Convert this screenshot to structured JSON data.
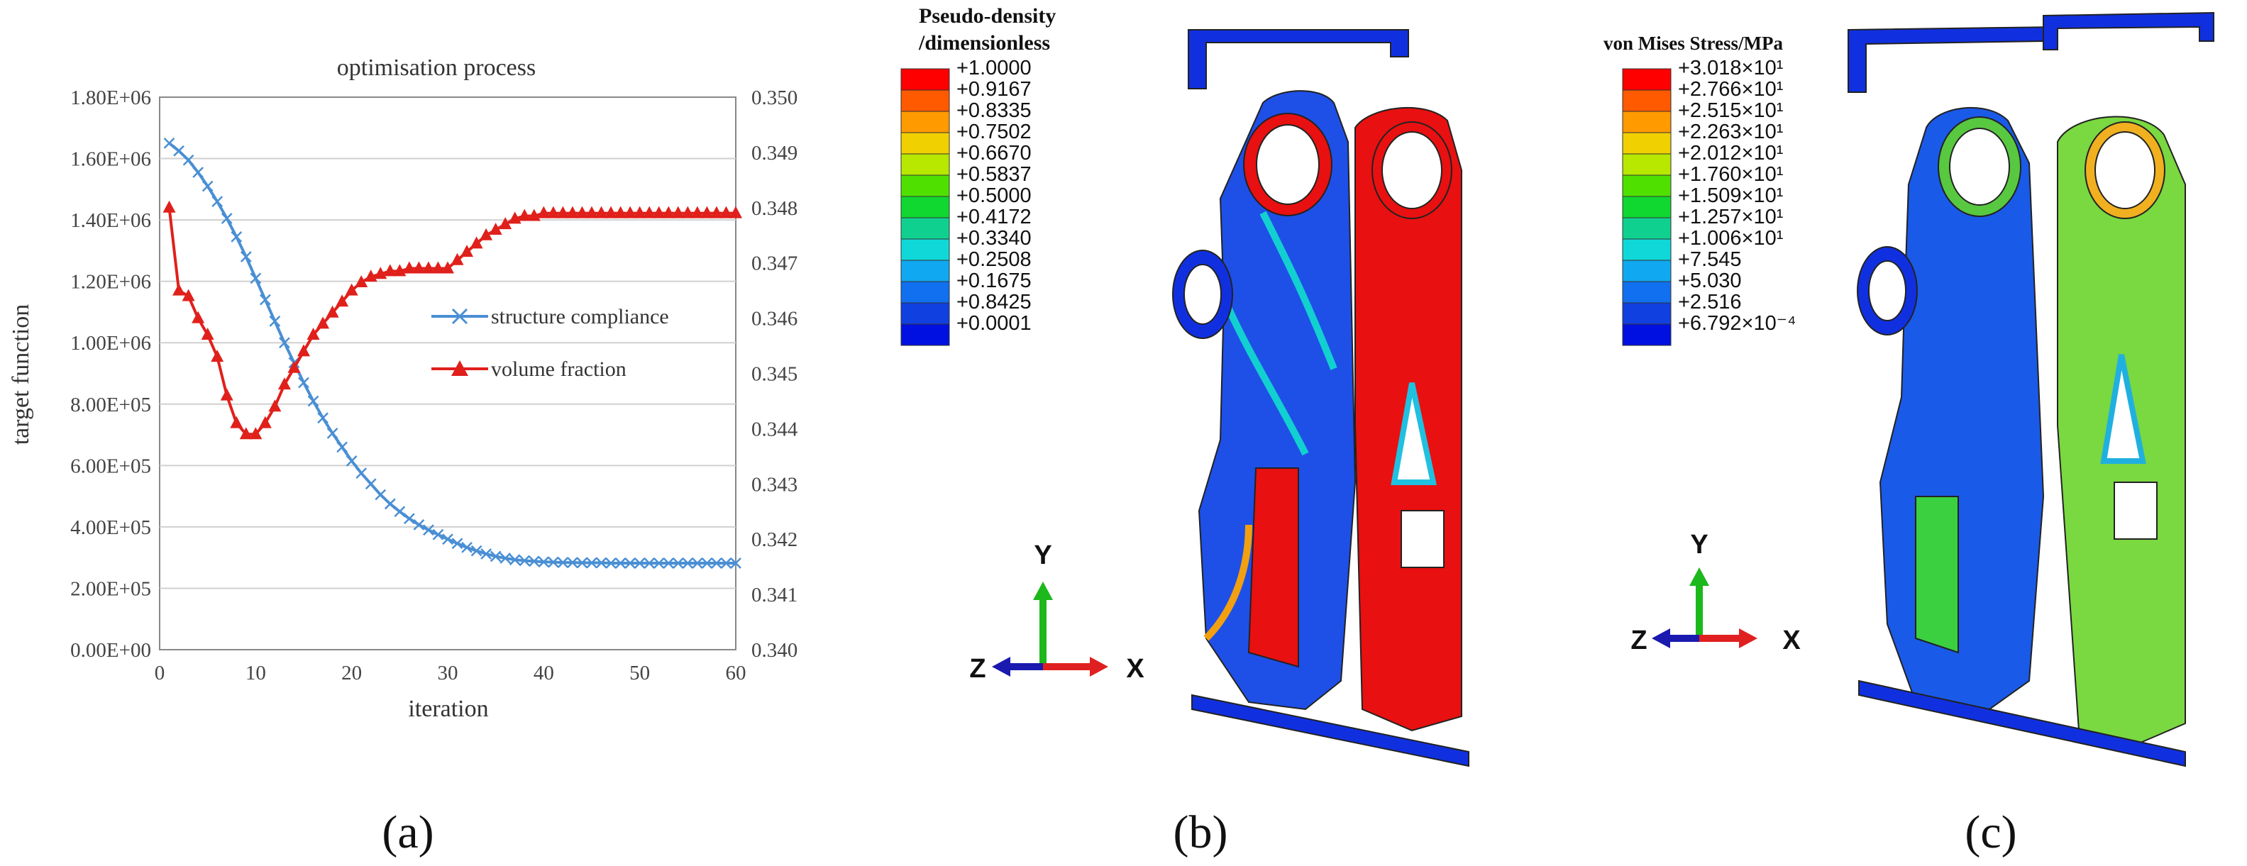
{
  "chart_data": {
    "type": "line",
    "title": "optimisation process",
    "xlabel": "iteration",
    "ylabel": "target function",
    "xlim": [
      0,
      60
    ],
    "ylim": [
      0,
      1800000
    ],
    "y2lim": [
      0.34,
      0.35
    ],
    "x_ticks": [
      "0",
      "10",
      "20",
      "30",
      "40",
      "50",
      "60"
    ],
    "y_ticks": [
      "0.00E+00",
      "2.00E+05",
      "4.00E+05",
      "6.00E+05",
      "8.00E+05",
      "1.00E+06",
      "1.20E+06",
      "1.40E+06",
      "1.60E+06",
      "1.80E+06"
    ],
    "y2_ticks": [
      "0.340",
      "0.341",
      "0.342",
      "0.343",
      "0.344",
      "0.345",
      "0.346",
      "0.347",
      "0.348",
      "0.349",
      "0.350"
    ],
    "grid": "horizontal",
    "legend_position": "right",
    "series": [
      {
        "name": "structure compliance",
        "axis": "left",
        "color": "#4a8fd4",
        "marker": "x",
        "x": [
          1,
          2,
          3,
          4,
          5,
          6,
          7,
          8,
          9,
          10,
          11,
          12,
          13,
          14,
          15,
          16,
          17,
          18,
          19,
          20,
          21,
          22,
          23,
          24,
          25,
          26,
          27,
          28,
          29,
          30,
          31,
          32,
          33,
          34,
          35,
          36,
          37,
          38,
          39,
          40,
          41,
          42,
          43,
          44,
          45,
          46,
          47,
          48,
          49,
          50,
          51,
          52,
          53,
          54,
          55,
          56,
          57,
          58,
          59,
          60
        ],
        "values": [
          1650000,
          1625000,
          1595000,
          1555000,
          1510000,
          1460000,
          1405000,
          1345000,
          1280000,
          1210000,
          1140000,
          1070000,
          1000000,
          935000,
          870000,
          810000,
          755000,
          705000,
          660000,
          615000,
          575000,
          540000,
          505000,
          475000,
          450000,
          427000,
          407000,
          390000,
          375000,
          360000,
          346000,
          333000,
          322000,
          312000,
          304000,
          298000,
          293000,
          290000,
          288000,
          286000,
          285000,
          284000,
          284000,
          283000,
          283000,
          283000,
          282000,
          282000,
          282000,
          282000,
          282000,
          282000,
          282000,
          282000,
          282000,
          282000,
          282000,
          282000,
          282000,
          282000
        ]
      },
      {
        "name": "volume fraction",
        "axis": "right",
        "color": "#e0201b",
        "marker": "triangle",
        "x": [
          1,
          2,
          3,
          4,
          5,
          6,
          7,
          8,
          9,
          10,
          11,
          12,
          13,
          14,
          15,
          16,
          17,
          18,
          19,
          20,
          21,
          22,
          23,
          24,
          25,
          26,
          27,
          28,
          29,
          30,
          31,
          32,
          33,
          34,
          35,
          36,
          37,
          38,
          39,
          40,
          41,
          42,
          43,
          44,
          45,
          46,
          47,
          48,
          49,
          50,
          51,
          52,
          53,
          54,
          55,
          56,
          57,
          58,
          59,
          60
        ],
        "values": [
          0.348,
          0.3465,
          0.3464,
          0.346,
          0.3457,
          0.3453,
          0.3446,
          0.3441,
          0.3439,
          0.3439,
          0.3441,
          0.3444,
          0.3448,
          0.3451,
          0.3454,
          0.3457,
          0.3459,
          0.3461,
          0.3463,
          0.3465,
          0.34665,
          0.34675,
          0.3468,
          0.34685,
          0.34685,
          0.3469,
          0.3469,
          0.3469,
          0.3469,
          0.3469,
          0.34705,
          0.3472,
          0.34735,
          0.3475,
          0.3476,
          0.3477,
          0.3478,
          0.34785,
          0.34785,
          0.3479,
          0.3479,
          0.3479,
          0.3479,
          0.3479,
          0.3479,
          0.3479,
          0.3479,
          0.3479,
          0.3479,
          0.3479,
          0.3479,
          0.3479,
          0.3479,
          0.3479,
          0.3479,
          0.3479,
          0.3479,
          0.3479,
          0.3479,
          0.3479
        ]
      }
    ]
  },
  "panels": {
    "a": "(a)",
    "b": "(b)",
    "c": "(c)"
  },
  "colorbar_b": {
    "title_line1": "Pseudo-density",
    "title_line2": "/dimensionless",
    "labels": [
      "+1.0000",
      "+0.9167",
      "+0.8335",
      "+0.7502",
      "+0.6670",
      "+0.5837",
      "+0.5000",
      "+0.4172",
      "+0.3340",
      "+0.2508",
      "+0.1675",
      "+0.8425",
      "+0.0001"
    ]
  },
  "colorbar_c": {
    "title": "von Mises Stress/MPa",
    "labels": [
      "+3.018×10¹",
      "+2.766×10¹",
      "+2.515×10¹",
      "+2.263×10¹",
      "+2.012×10¹",
      "+1.760×10¹",
      "+1.509×10¹",
      "+1.257×10¹",
      "+1.006×10¹",
      "+7.545",
      "+5.030",
      "+2.516",
      "+6.792×10⁻⁴"
    ]
  },
  "colorbar_colors": [
    "#ff0000",
    "#ff5a00",
    "#ff9a00",
    "#f0d000",
    "#b8e800",
    "#50e000",
    "#10d830",
    "#10d090",
    "#10d8d8",
    "#10a8f0",
    "#1070f0",
    "#1040e0",
    "#0010e0"
  ],
  "triad": {
    "x": "X",
    "y": "Y",
    "z": "Z"
  }
}
